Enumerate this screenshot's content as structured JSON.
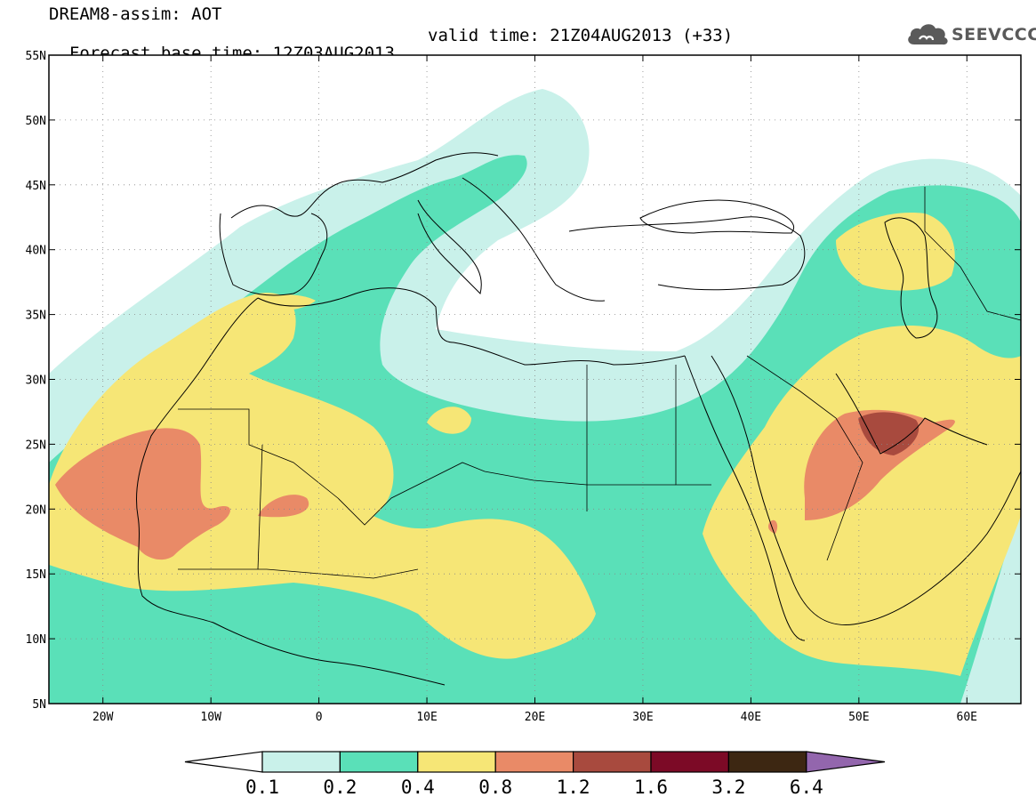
{
  "header": {
    "title": "DREAM8-assim: AOT",
    "base_time": "Forecast base time: 12Z03AUG2013",
    "valid_time": "valid time: 21Z04AUG2013 (+33)"
  },
  "logo": {
    "text": "SEEVCCC",
    "icon": "cloud-icon"
  },
  "map": {
    "lon_range": [
      -25,
      65
    ],
    "lat_range": [
      5,
      55
    ],
    "lat_ticks": [
      "5N",
      "10N",
      "15N",
      "20N",
      "25N",
      "30N",
      "35N",
      "40N",
      "45N",
      "50N",
      "55N"
    ],
    "lon_ticks": [
      "20W",
      "10W",
      "0",
      "10E",
      "20E",
      "30E",
      "40E",
      "50E",
      "60E"
    ],
    "gridlines": "dotted"
  },
  "colorbar": {
    "labels": [
      "0.1",
      "0.2",
      "0.4",
      "0.8",
      "1.2",
      "1.6",
      "3.2",
      "6.4"
    ],
    "colors": [
      "#ffffff",
      "#c9f1ea",
      "#5ae0b8",
      "#f6e676",
      "#e98a67",
      "#a84a3e",
      "#7c0a26",
      "#3d2712",
      "#9366ad"
    ]
  }
}
